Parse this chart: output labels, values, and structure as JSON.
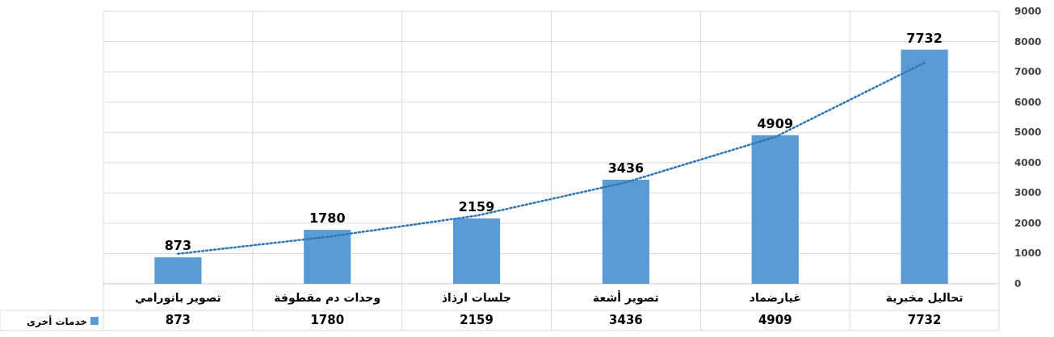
{
  "chart_data": {
    "type": "bar",
    "categories": [
      "تصوير بانورامي",
      "وحدات دم مقطوفة",
      "جلسات ارذاذ",
      "تصوير أشعة",
      "غيارضماد",
      "تحاليل مخبرية"
    ],
    "series": [
      {
        "name": "خدمات أخرى",
        "color": "#5b9bd5",
        "values": [
          873,
          1780,
          2159,
          3436,
          4909,
          7732
        ],
        "value_labels": [
          "873",
          "1780",
          "2159",
          "3436",
          "4909",
          "7732"
        ]
      },
      {
        "type": "line",
        "color": "#2e75b6",
        "line_style": "dotted",
        "values": [
          990,
          1550,
          2250,
          3350,
          4850,
          7300
        ]
      }
    ],
    "ylim": [
      0,
      9000
    ],
    "yticks": [
      0,
      1000,
      2000,
      3000,
      4000,
      5000,
      6000,
      7000,
      8000,
      9000
    ],
    "annotations": [
      "873",
      "1780",
      "2159",
      "3436",
      "4909",
      "7732"
    ],
    "grid": true,
    "legend": "bottom left"
  }
}
